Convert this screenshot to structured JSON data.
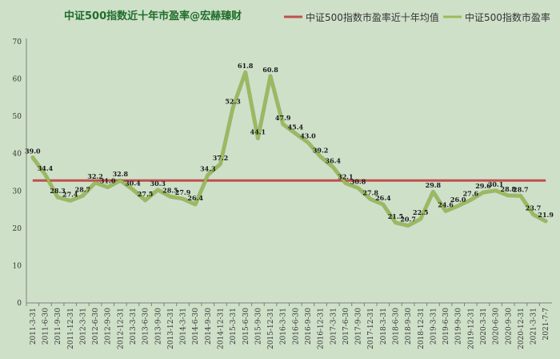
{
  "chart_data": {
    "type": "line",
    "title": "中证500指数近十年市盈率@宏赫臻财",
    "ylim": [
      0,
      70
    ],
    "yticks": [
      0,
      10,
      20,
      30,
      40,
      50,
      60,
      70
    ],
    "grid": false,
    "legend_position": "top-right",
    "categories": [
      "2011-3-31",
      "2011-6-30",
      "2011-9-30",
      "2011-12-31",
      "2012-3-31",
      "2012-6-30",
      "2012-9-30",
      "2012-12-31",
      "2013-3-31",
      "2013-6-30",
      "2013-9-30",
      "2013-12-31",
      "2014-3-31",
      "2014-6-30",
      "2014-9-30",
      "2014-12-31",
      "2015-3-31",
      "2015-6-30",
      "2015-9-30",
      "2015-12-31",
      "2016-3-31",
      "2016-6-30",
      "2016-9-30",
      "2016-12-31",
      "2017-3-31",
      "2017-6-30",
      "2017-9-30",
      "2017-12-31",
      "2018-3-31",
      "2018-6-30",
      "2018-9-30",
      "2018-12-31",
      "2019-3-31",
      "2019-6-30",
      "2019-9-30",
      "2019-12-31",
      "2020-3-31",
      "2020-6-30",
      "2020-9-30",
      "2020-12-31",
      "2021-3-31",
      "2021-7-7"
    ],
    "series": [
      {
        "name": "中证500指数市盈率",
        "color": "#9bbb59",
        "values": [
          39.0,
          34.4,
          28.3,
          27.4,
          28.7,
          32.2,
          31.0,
          32.8,
          30.4,
          27.5,
          30.3,
          28.5,
          27.9,
          26.4,
          34.3,
          37.2,
          52.3,
          61.8,
          44.1,
          60.8,
          47.9,
          45.4,
          43.0,
          39.2,
          36.4,
          32.1,
          30.8,
          27.8,
          26.4,
          21.5,
          20.7,
          22.5,
          29.8,
          24.6,
          26.0,
          27.6,
          29.6,
          30.1,
          28.8,
          28.7,
          23.7,
          21.9
        ]
      },
      {
        "name": "中证500指数市盈率近十年均值",
        "color": "#c0504d",
        "value": 32.8
      }
    ]
  }
}
